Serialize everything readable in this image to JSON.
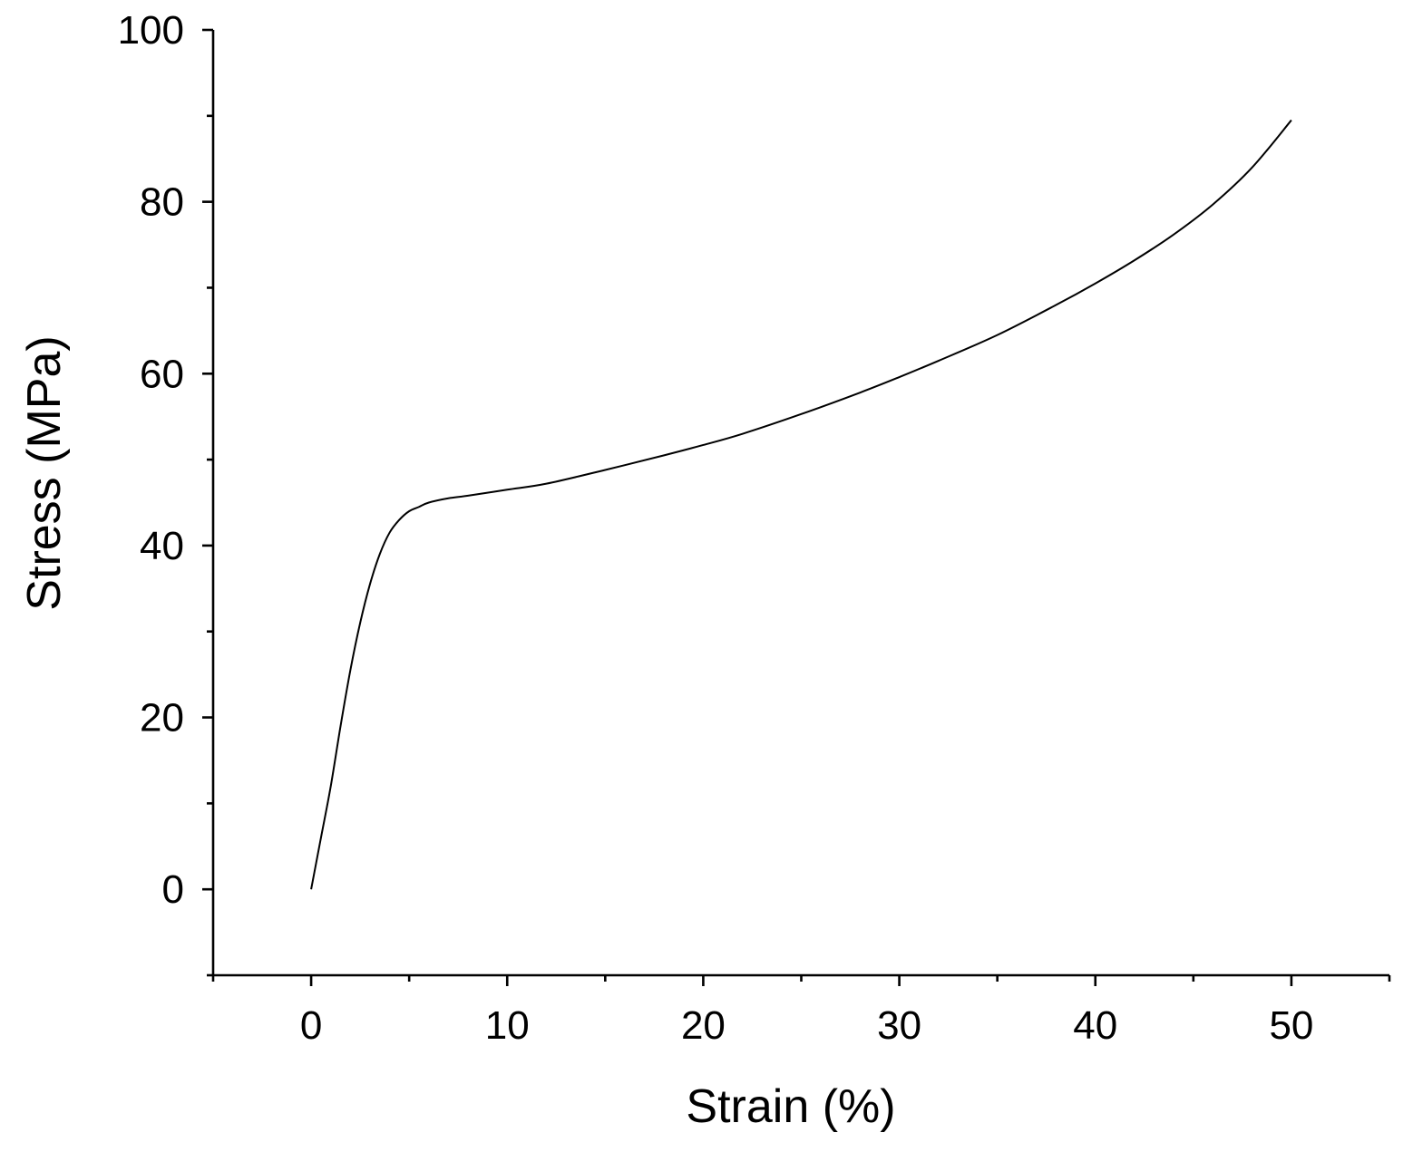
{
  "chart_data": {
    "type": "line",
    "title": "",
    "xlabel": "Strain (%)",
    "ylabel": "Stress (MPa)",
    "xlim": [
      -5,
      55
    ],
    "ylim": [
      -10,
      100
    ],
    "x_major_ticks": [
      0,
      10,
      20,
      30,
      40,
      50
    ],
    "x_minor_ticks": [
      -5,
      5,
      15,
      25,
      35,
      45,
      55
    ],
    "y_major_ticks": [
      0,
      20,
      40,
      60,
      80,
      100
    ],
    "y_minor_ticks": [
      -10,
      10,
      30,
      50,
      70,
      90
    ],
    "x_tick_labels": [
      "0",
      "10",
      "20",
      "30",
      "40",
      "50"
    ],
    "y_tick_labels": [
      "0",
      "20",
      "40",
      "60",
      "80",
      "100"
    ],
    "grid": false,
    "legend": "none",
    "line_color": "#000000",
    "series": [
      {
        "x": [
          0,
          0.5,
          1.0,
          1.5,
          2.0,
          2.5,
          3.0,
          3.5,
          4.0,
          4.5,
          5.0,
          5.5,
          6.0,
          7.0,
          8.0,
          10.0,
          12.0,
          15.0,
          18.0,
          20.0,
          22.0,
          25.0,
          28.0,
          30.0,
          32.0,
          35.0,
          38.0,
          40.0,
          42.0,
          44.0,
          46.0,
          48.0,
          50.0
        ],
        "y": [
          0,
          6,
          12,
          19,
          25.5,
          31,
          35.5,
          39,
          41.5,
          43,
          44,
          44.5,
          45,
          45.5,
          45.8,
          46.5,
          47.2,
          48.8,
          50.5,
          51.7,
          53,
          55.3,
          57.8,
          59.6,
          61.5,
          64.5,
          68,
          70.5,
          73.2,
          76.2,
          79.7,
          84,
          89.5
        ]
      }
    ]
  }
}
